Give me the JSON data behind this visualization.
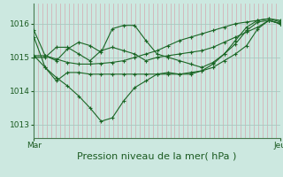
{
  "title": "Pression niveau de la mer( hPa )",
  "xlabel_left": "Mar",
  "xlabel_right": "Jeu",
  "ylim": [
    1012.6,
    1016.6
  ],
  "yticks": [
    1013,
    1014,
    1015,
    1016
  ],
  "bg_color": "#cce8e0",
  "hgrid_color": "#aac8c0",
  "vgrid_color": "#d4a8b0",
  "line_color": "#1a6625",
  "lines": [
    [
      1015.8,
      1015.05,
      1014.9,
      1015.25,
      1015.45,
      1015.35,
      1015.15,
      1015.85,
      1015.95,
      1015.95,
      1015.5,
      1015.1,
      1015.0,
      1014.9,
      1014.8,
      1014.7,
      1014.85,
      1015.1,
      1015.5,
      1015.9,
      1016.1,
      1016.15,
      1016.05
    ],
    [
      1015.05,
      1015.05,
      1014.95,
      1014.85,
      1014.8,
      1014.8,
      1014.82,
      1014.85,
      1014.9,
      1015.0,
      1015.1,
      1015.2,
      1015.35,
      1015.5,
      1015.6,
      1015.7,
      1015.8,
      1015.9,
      1016.0,
      1016.05,
      1016.1,
      1016.15,
      1016.1
    ],
    [
      1015.0,
      1015.0,
      1015.3,
      1015.3,
      1015.1,
      1014.9,
      1015.2,
      1015.3,
      1015.2,
      1015.1,
      1014.9,
      1015.0,
      1015.05,
      1015.1,
      1015.15,
      1015.2,
      1015.3,
      1015.45,
      1015.6,
      1015.75,
      1015.9,
      1016.1,
      1016.0
    ],
    [
      1015.6,
      1014.7,
      1014.3,
      1014.55,
      1014.55,
      1014.5,
      1014.5,
      1014.5,
      1014.5,
      1014.5,
      1014.5,
      1014.5,
      1014.5,
      1014.5,
      1014.55,
      1014.6,
      1014.7,
      1014.9,
      1015.1,
      1015.35,
      1015.85,
      1016.1,
      1016.0
    ],
    [
      1015.05,
      1014.7,
      1014.4,
      1014.15,
      1013.85,
      1013.5,
      1013.1,
      1013.2,
      1013.7,
      1014.1,
      1014.3,
      1014.5,
      1014.55,
      1014.5,
      1014.5,
      1014.6,
      1014.8,
      1015.1,
      1015.4,
      1015.8,
      1016.05,
      1016.1,
      1016.0
    ]
  ],
  "n_points": 23,
  "tick_fontsize": 6.5,
  "label_fontsize": 8.0,
  "n_vlines": 56
}
